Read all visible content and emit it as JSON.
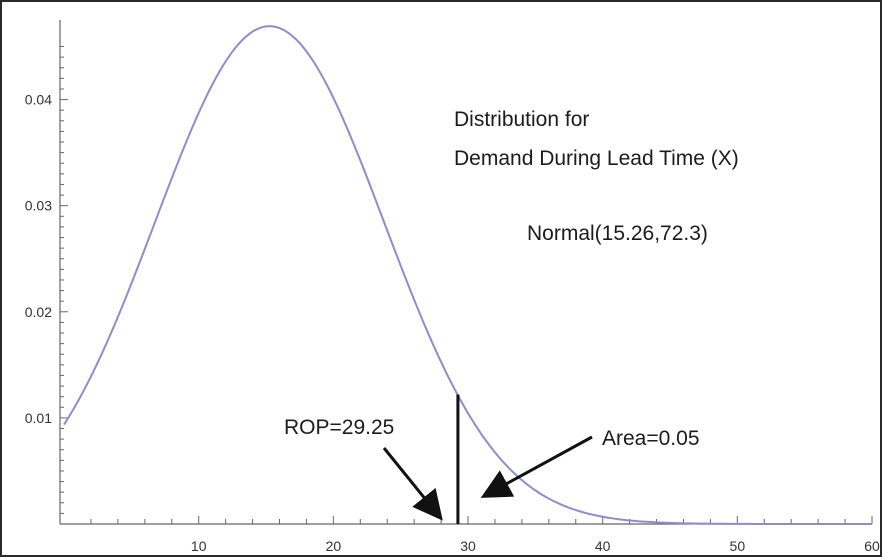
{
  "chart_data": {
    "type": "line",
    "xlim": [
      -0.3,
      60
    ],
    "ylim": [
      0,
      0.0475
    ],
    "x_ticks": [
      10,
      20,
      30,
      40,
      50,
      60
    ],
    "y_ticks": [
      0.01,
      0.02,
      0.03,
      0.04
    ],
    "x_tick_labels": [
      "10",
      "20",
      "30",
      "40",
      "50",
      "60"
    ],
    "y_tick_labels": [
      "0.01",
      "0.02",
      "0.03",
      "0.04"
    ],
    "distribution": {
      "mean": 15.26,
      "variance": 72.3
    },
    "series": [
      {
        "x": [
          0,
          2,
          4,
          6,
          8,
          10,
          12,
          14,
          15.26,
          16,
          18,
          20,
          22,
          24,
          26,
          28,
          29.25,
          30,
          32,
          34,
          36,
          38,
          40,
          42,
          44,
          46,
          48,
          50,
          52,
          54,
          56,
          58,
          60
        ],
        "y": [
          0.0093,
          0.0138,
          0.0195,
          0.026,
          0.0326,
          0.0387,
          0.0434,
          0.0464,
          0.0469,
          0.0467,
          0.0444,
          0.0401,
          0.0343,
          0.0277,
          0.021,
          0.015,
          0.012,
          0.0104,
          0.0068,
          0.0042,
          0.0024,
          0.0013,
          0.0007,
          0.0003,
          0.0002,
          0.0001,
          0.0,
          0.0,
          0.0,
          0.0,
          0.0,
          0.0,
          0.0
        ],
        "color": "#8e8cd0"
      }
    ],
    "rop": {
      "x": 29.25,
      "y": 0.0122
    },
    "annotations": {
      "title_line1": "Distribution for",
      "title_line2": "Demand During Lead Time (X)",
      "distribution_label": "Normal(15.26,72.3)",
      "rop_label": "ROP=29.25",
      "area_label": "Area=0.05"
    },
    "grid": false,
    "axis_color": "#666666",
    "curve_color": "#8e8cd0"
  }
}
